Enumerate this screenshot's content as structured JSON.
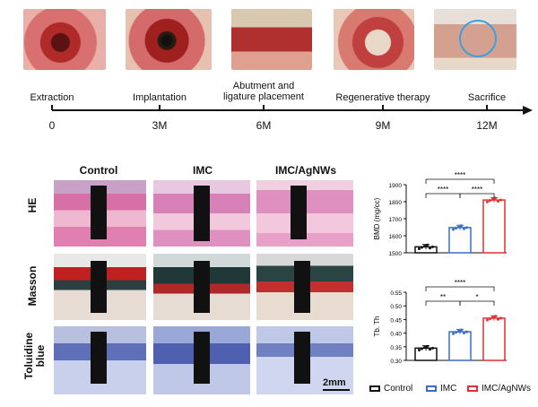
{
  "timeline": {
    "steps": [
      {
        "label": "Extraction",
        "tick": "0"
      },
      {
        "label": "Implantation",
        "tick": "3M"
      },
      {
        "label": "Abutment and\nligature placement",
        "tick": "6M"
      },
      {
        "label": "Regenerative therapy",
        "tick": "9M"
      },
      {
        "label": "Sacrifice",
        "tick": "12M"
      }
    ]
  },
  "histology": {
    "columns": [
      "Control",
      "IMC",
      "IMC/AgNWs"
    ],
    "rows": [
      "HE",
      "Masson",
      "Toluidine\nblue"
    ],
    "scale_bar": "2mm"
  },
  "colors": {
    "control": "#111111",
    "imc": "#3b6cc4",
    "imc_agnws": "#e03131"
  },
  "chart_data": [
    {
      "type": "bar",
      "ylabel": "BMD (mg/cc)",
      "categories": [
        "Control",
        "IMC",
        "IMC/AgNWs"
      ],
      "values": [
        1535,
        1648,
        1810
      ],
      "ylim": [
        1500,
        1900
      ],
      "yticks": [
        "1500",
        "1600",
        "1700",
        "1800",
        "1900"
      ],
      "significance": [
        {
          "pair": [
            "Control",
            "IMC"
          ],
          "label": "****"
        },
        {
          "pair": [
            "IMC",
            "IMC/AgNWs"
          ],
          "label": "****"
        },
        {
          "pair": [
            "Control",
            "IMC/AgNWs"
          ],
          "label": "****"
        }
      ]
    },
    {
      "type": "bar",
      "ylabel": "Tb. Th",
      "categories": [
        "Control",
        "IMC",
        "IMC/AgNWs"
      ],
      "values": [
        0.345,
        0.405,
        0.455
      ],
      "ylim": [
        0.3,
        0.55
      ],
      "yticks": [
        "0.30",
        "0.35",
        "0.40",
        "0.45",
        "0.50",
        "0.55"
      ],
      "significance": [
        {
          "pair": [
            "Control",
            "IMC"
          ],
          "label": "**"
        },
        {
          "pair": [
            "IMC",
            "IMC/AgNWs"
          ],
          "label": "*"
        },
        {
          "pair": [
            "Control",
            "IMC/AgNWs"
          ],
          "label": "****"
        }
      ]
    }
  ],
  "legend": [
    "Control",
    "IMC",
    "IMC/AgNWs"
  ]
}
